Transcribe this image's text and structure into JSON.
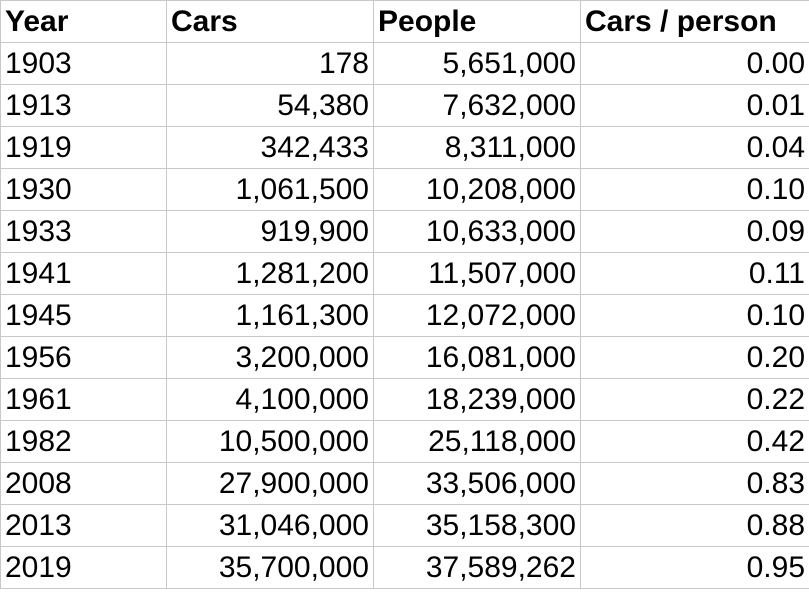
{
  "headers": [
    "Year",
    "Cars",
    "People",
    "Cars / person"
  ],
  "rows": [
    [
      "1903",
      "178",
      "5,651,000",
      "0.00"
    ],
    [
      "1913",
      "54,380",
      "7,632,000",
      "0.01"
    ],
    [
      "1919",
      "342,433",
      "8,311,000",
      "0.04"
    ],
    [
      "1930",
      "1,061,500",
      "10,208,000",
      "0.10"
    ],
    [
      "1933",
      "919,900",
      "10,633,000",
      "0.09"
    ],
    [
      "1941",
      "1,281,200",
      "11,507,000",
      "0.11"
    ],
    [
      "1945",
      "1,161,300",
      "12,072,000",
      "0.10"
    ],
    [
      "1956",
      "3,200,000",
      "16,081,000",
      "0.20"
    ],
    [
      "1961",
      "4,100,000",
      "18,239,000",
      "0.22"
    ],
    [
      "1982",
      "10,500,000",
      "25,118,000",
      "0.42"
    ],
    [
      "2008",
      "27,900,000",
      "33,506,000",
      "0.83"
    ],
    [
      "2013",
      "31,046,000",
      "35,158,300",
      "0.88"
    ],
    [
      "2019",
      "35,700,000",
      "37,589,262",
      "0.95"
    ]
  ]
}
